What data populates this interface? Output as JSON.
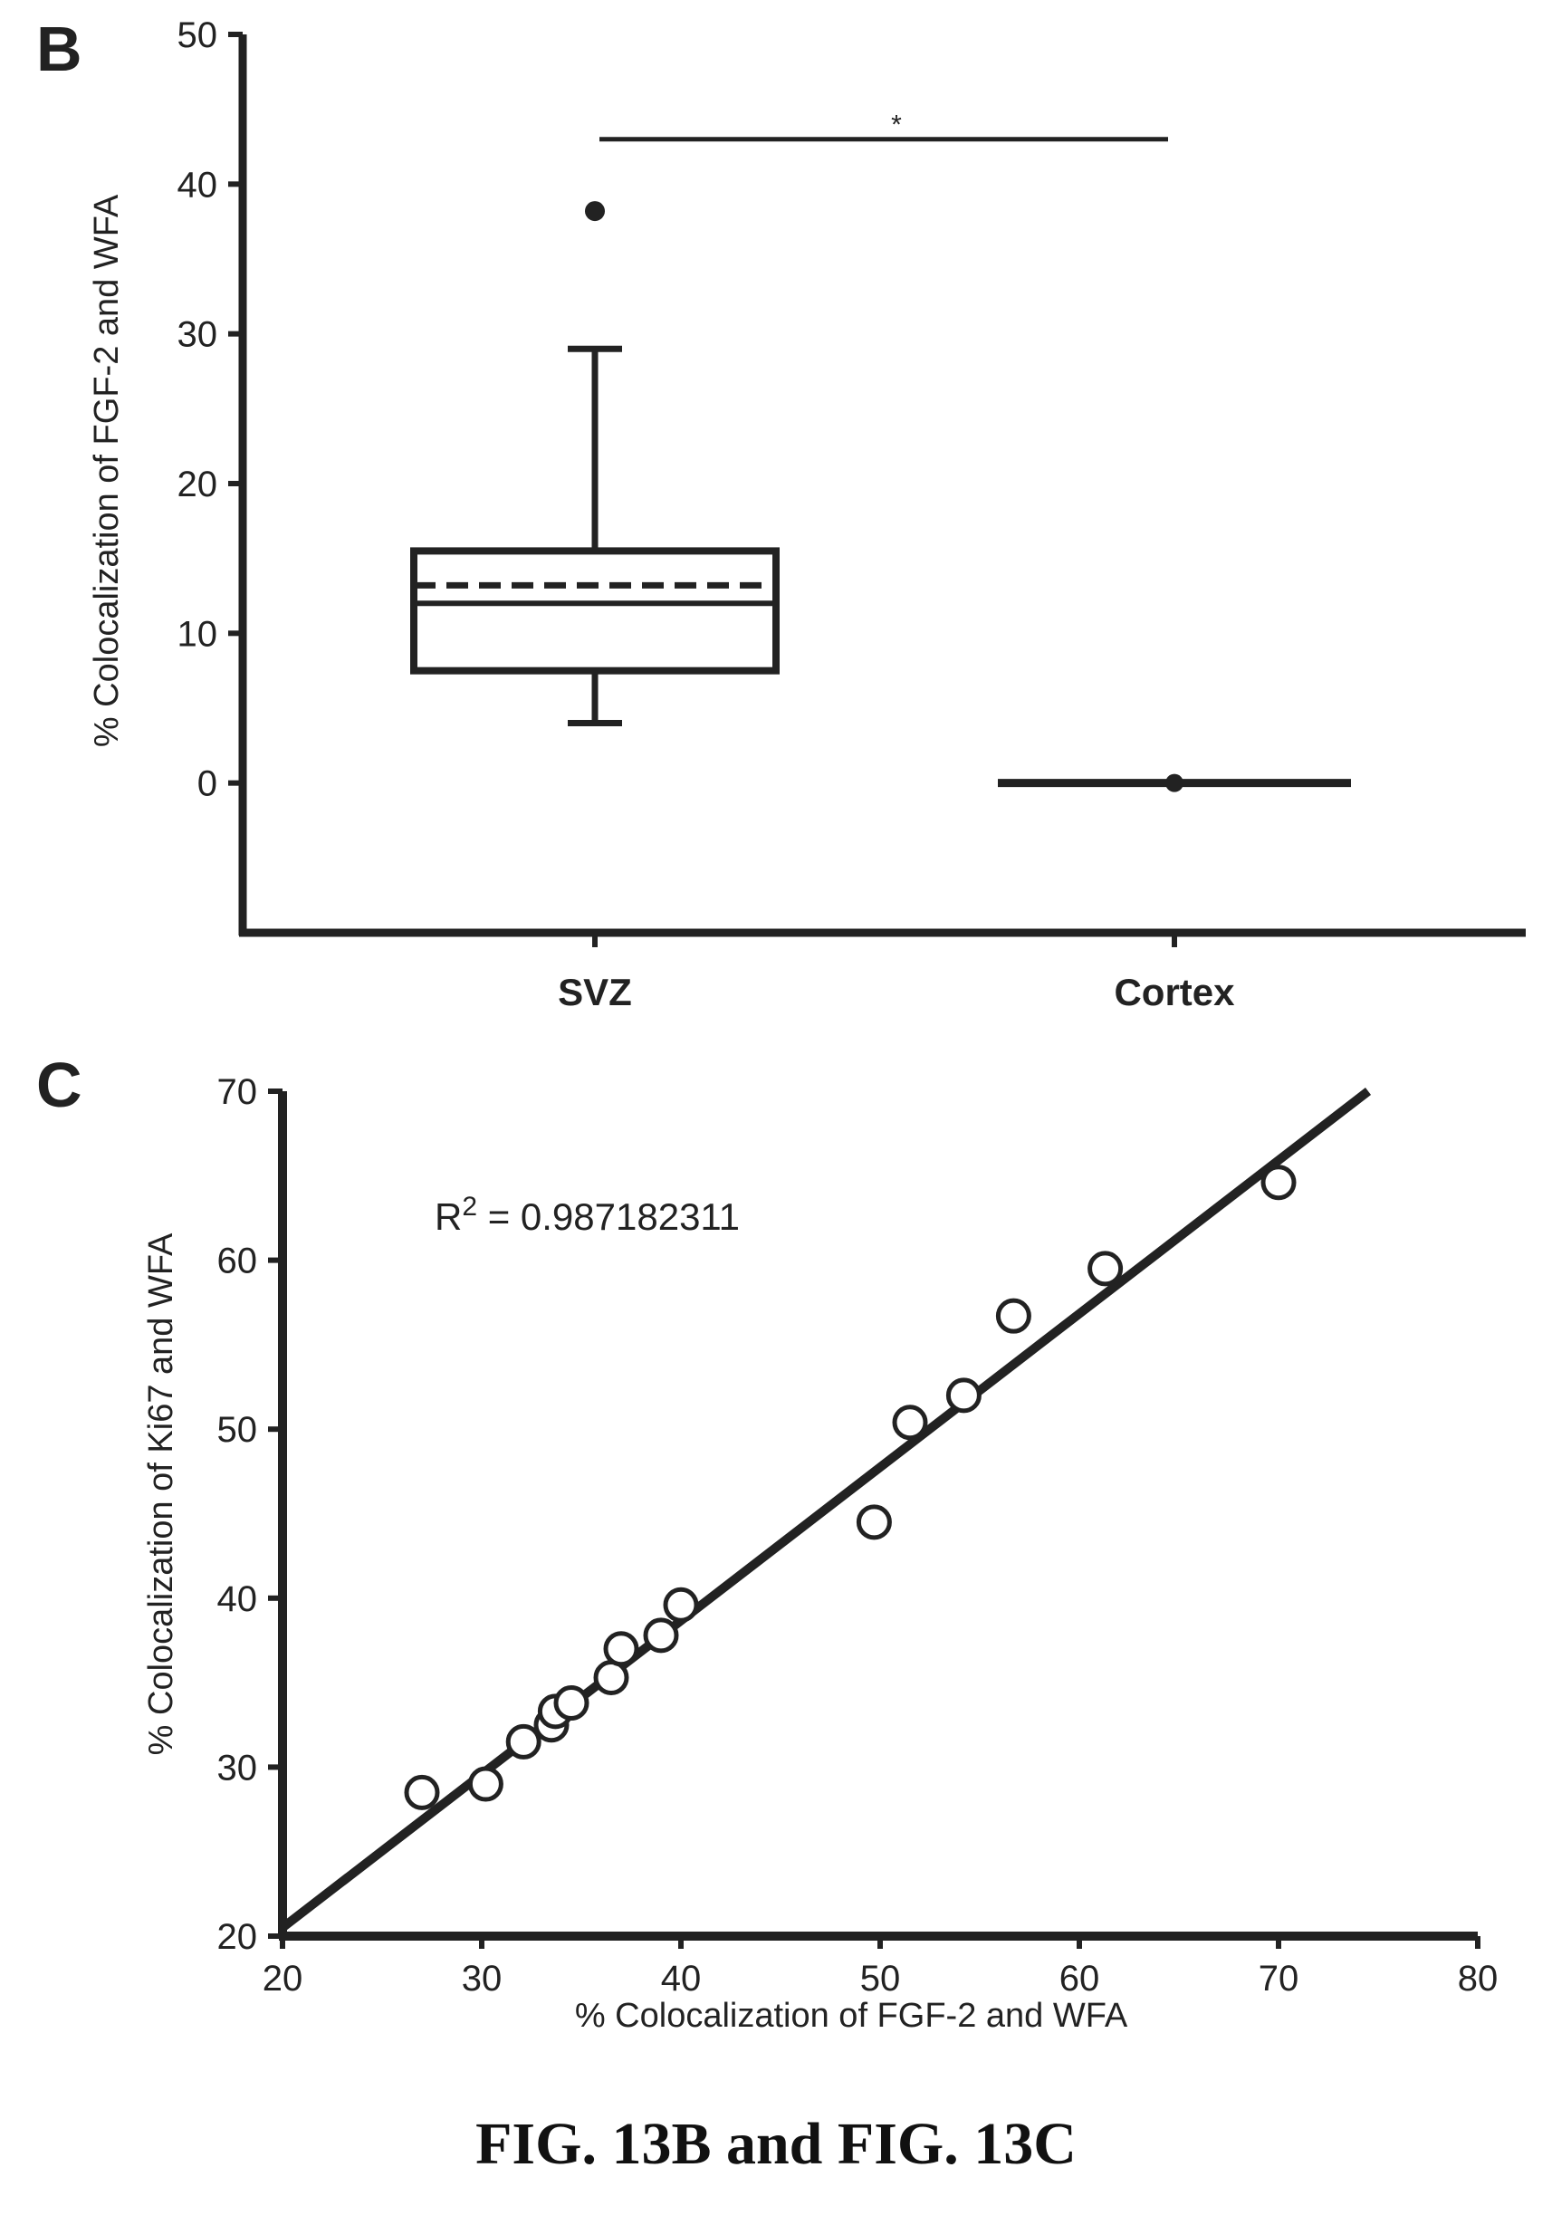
{
  "caption": "FIG. 13B and FIG. 13C",
  "chart_data": [
    {
      "panel_label": "B",
      "type": "box",
      "ylabel": "% Colocalization of FGF-2 and WFA",
      "ylim": [
        -10,
        50
      ],
      "yticks": [
        "0",
        "10",
        "20",
        "30",
        "40",
        "50"
      ],
      "categories": [
        "SVZ",
        "Cortex"
      ],
      "boxes": [
        {
          "category": "SVZ",
          "whisker_low": 4,
          "q1": 7.5,
          "median": 12,
          "mean": 13.2,
          "q3": 15.5,
          "whisker_high": 29,
          "outliers": [
            38.2
          ]
        },
        {
          "category": "Cortex",
          "whisker_low": 0,
          "q1": 0,
          "median": 0,
          "mean": 0,
          "q3": 0,
          "whisker_high": 0,
          "outliers": []
        }
      ],
      "significance": {
        "label": "*",
        "y": 43,
        "from": "SVZ",
        "to": "Cortex"
      }
    },
    {
      "panel_label": "C",
      "type": "scatter",
      "xlabel": "% Colocalization of FGF-2 and WFA",
      "ylabel": "% Colocalization of Ki67 and WFA",
      "xlim": [
        20,
        80
      ],
      "ylim": [
        20,
        70
      ],
      "xticks": [
        "20",
        "30",
        "40",
        "50",
        "60",
        "70",
        "80"
      ],
      "yticks": [
        "20",
        "30",
        "40",
        "50",
        "60",
        "70"
      ],
      "annotation": {
        "prefix": "R",
        "sup": "2",
        "text": " = 0.987182311"
      },
      "points": [
        [
          27,
          28.5
        ],
        [
          30.2,
          29
        ],
        [
          32.1,
          31.5
        ],
        [
          33.5,
          32.5
        ],
        [
          33.7,
          33.3
        ],
        [
          34.5,
          33.8
        ],
        [
          36.5,
          35.3
        ],
        [
          37,
          37
        ],
        [
          39,
          37.8
        ],
        [
          40,
          39.6
        ],
        [
          49.7,
          44.5
        ],
        [
          51.5,
          50.4
        ],
        [
          54.2,
          52
        ],
        [
          56.7,
          56.7
        ],
        [
          61.3,
          59.5
        ],
        [
          70,
          64.6
        ]
      ],
      "fit_line": {
        "x": [
          20,
          74.5
        ],
        "y": [
          20.5,
          70
        ]
      }
    }
  ]
}
